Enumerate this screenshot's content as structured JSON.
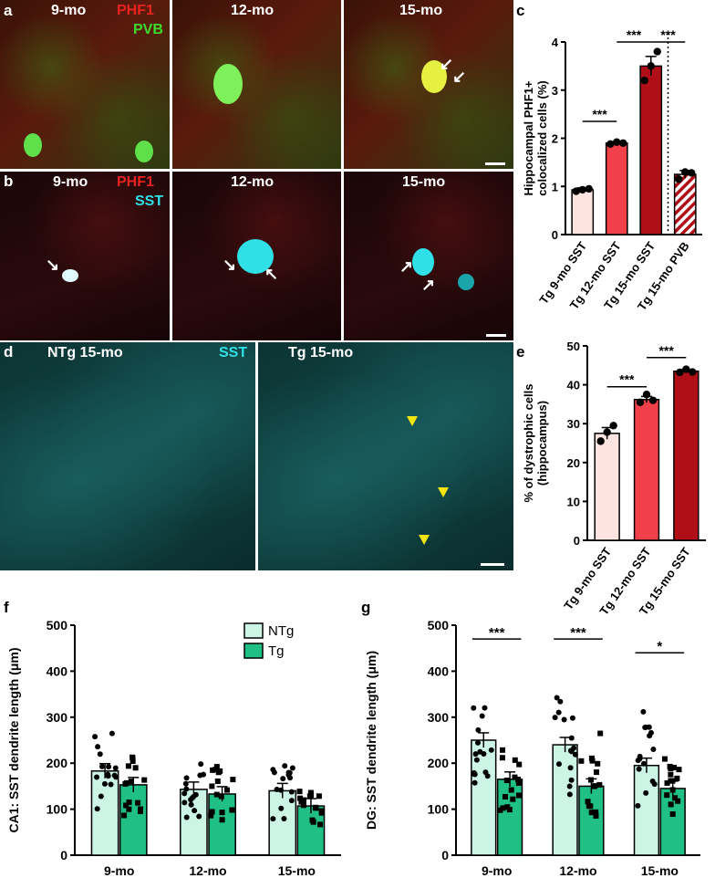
{
  "panels": {
    "a": {
      "label": "a",
      "ages": [
        "9-mo",
        "12-mo",
        "15-mo"
      ],
      "marker_red": "PHF1",
      "marker_green": "PVB"
    },
    "b": {
      "label": "b",
      "ages": [
        "9-mo",
        "12-mo",
        "15-mo"
      ],
      "marker_red": "PHF1",
      "marker_cyan": "SST"
    },
    "d": {
      "label": "d",
      "left_title": "NTg 15-mo",
      "right_title": "Tg 15-mo",
      "marker": "SST"
    },
    "c": {
      "label": "c"
    },
    "e": {
      "label": "e"
    },
    "f": {
      "label": "f"
    },
    "g": {
      "label": "g"
    }
  },
  "colors": {
    "phf1_red": "#e8231f",
    "pvb_green": "#3ddc2a",
    "sst_cyan": "#2fe0e6",
    "bar_light_pink": "#fde4e1",
    "bar_red": "#f2404a",
    "bar_dark_red": "#b00f17",
    "ntg_fill": "#cdf5e6",
    "tg_fill": "#1fbf85",
    "arrowhead_yellow": "#f2e60e"
  },
  "chart_data": [
    {
      "id": "c",
      "type": "bar",
      "categories": [
        "Tg 9-mo SST",
        "Tg 12-mo SST",
        "Tg 15-mo SST",
        "Tg 15-mo PVB"
      ],
      "values": [
        0.93,
        1.9,
        3.5,
        1.25
      ],
      "errors": [
        0.04,
        0.03,
        0.2,
        0.08
      ],
      "points": [
        [
          0.9,
          0.93,
          0.95
        ],
        [
          1.88,
          1.92,
          1.9
        ],
        [
          3.2,
          3.5,
          3.8
        ],
        [
          1.15,
          1.3,
          1.28
        ]
      ],
      "ylabel": "Hippocampal PHF1+\ncolocalized cells (%)",
      "yticks": [
        "0",
        "1",
        "2",
        "3",
        "4"
      ],
      "ylim": [
        0,
        4
      ],
      "significance": [
        "***",
        "***",
        "***"
      ]
    },
    {
      "id": "e",
      "type": "bar",
      "categories": [
        "Tg 9-mo SST",
        "Tg 12-mo SST",
        "Tg 15-mo SST"
      ],
      "values": [
        27.5,
        36.2,
        43.5
      ],
      "errors": [
        1.5,
        0.8,
        0.4
      ],
      "points": [
        [
          25.5,
          27.8,
          29.5
        ],
        [
          35.5,
          37.5,
          36.0
        ],
        [
          43.2,
          44.0,
          43.3
        ]
      ],
      "ylabel": "% of dystrophic cells\n(hippocampus)",
      "yticks": [
        "0",
        "10",
        "20",
        "30",
        "40",
        "50"
      ],
      "ylim": [
        0,
        50
      ],
      "significance": [
        "***",
        "***"
      ]
    },
    {
      "id": "f",
      "type": "bar",
      "categories": [
        "9-mo",
        "12-mo",
        "15-mo"
      ],
      "series": [
        {
          "name": "NTg",
          "values": [
            183,
            143,
            140
          ]
        },
        {
          "name": "Tg",
          "values": [
            153,
            133,
            107
          ]
        }
      ],
      "ylabel": "CA1: SST dendrite length (μm)",
      "yticks": [
        "0",
        "100",
        "200",
        "300",
        "400",
        "500"
      ],
      "ylim": [
        0,
        500
      ],
      "legend": "top-center",
      "significance": []
    },
    {
      "id": "g",
      "type": "bar",
      "categories": [
        "9-mo",
        "12-mo",
        "15-mo"
      ],
      "series": [
        {
          "name": "NTg",
          "values": [
            250,
            240,
            195
          ]
        },
        {
          "name": "Tg",
          "values": [
            165,
            150,
            145
          ]
        }
      ],
      "ylabel": "DG: SST dendrite length (μm)",
      "yticks": [
        "0",
        "100",
        "200",
        "300",
        "400",
        "500"
      ],
      "ylim": [
        0,
        500
      ],
      "significance": [
        "***",
        "***",
        "*"
      ]
    }
  ]
}
